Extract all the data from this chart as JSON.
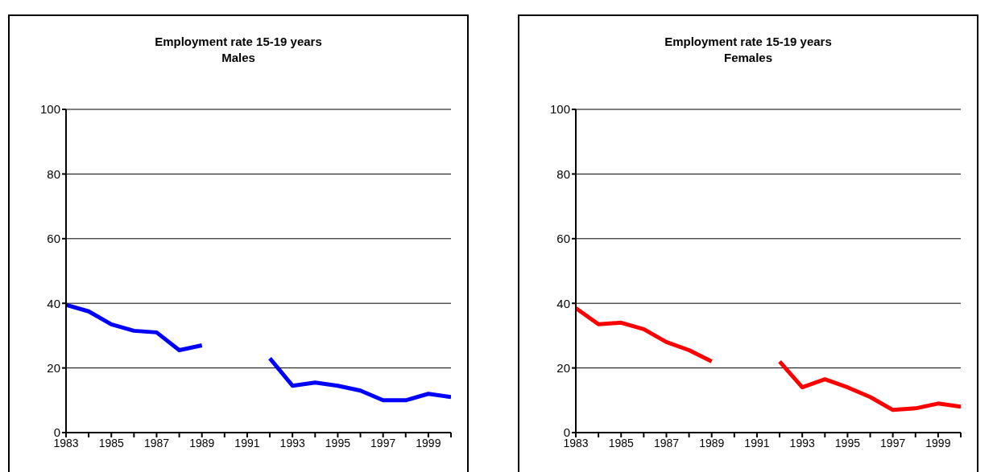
{
  "chart_data": [
    {
      "type": "line",
      "title": "Employment rate 15-19 years",
      "subtitle": "Males",
      "x": [
        1983,
        1984,
        1985,
        1986,
        1987,
        1988,
        1989,
        1990,
        1991,
        1992,
        1993,
        1994,
        1995,
        1996,
        1997,
        1998,
        1999,
        2000
      ],
      "series": [
        {
          "color": "#0000ff",
          "values": [
            39.5,
            37.5,
            33.5,
            31.5,
            31,
            25.5,
            27,
            null,
            null,
            23,
            14.5,
            15.5,
            14.5,
            13,
            10,
            10,
            12,
            11
          ]
        }
      ],
      "xlim": [
        1983,
        2000
      ],
      "xticks": [
        1983,
        {
          "value": 1984,
          "label": null
        },
        1985,
        {
          "value": 1986,
          "label": null
        },
        1987,
        {
          "value": 1988,
          "label": null
        },
        1989,
        {
          "value": 1990,
          "label": null
        },
        1991,
        {
          "value": 1992,
          "label": null
        },
        1993,
        {
          "value": 1994,
          "label": null
        },
        1995,
        {
          "value": 1996,
          "label": null
        },
        1997,
        {
          "value": 1998,
          "label": null
        },
        1999,
        {
          "value": 2000,
          "label": null
        }
      ],
      "ylim": [
        0,
        100
      ],
      "yticks": [
        0,
        20,
        40,
        60,
        80,
        100
      ],
      "grid": "y",
      "legend": false,
      "marker": "none",
      "line_style": "solid"
    },
    {
      "type": "line",
      "title": "Employment rate 15-19 years",
      "subtitle": "Females",
      "x": [
        1983,
        1984,
        1985,
        1986,
        1987,
        1988,
        1989,
        1990,
        1991,
        1992,
        1993,
        1994,
        1995,
        1996,
        1997,
        1998,
        1999,
        2000
      ],
      "series": [
        {
          "color": "#ff0000",
          "values": [
            38.5,
            33.5,
            34,
            32,
            28,
            25.5,
            22,
            null,
            null,
            22,
            14,
            16.5,
            14,
            11,
            7,
            7.5,
            9,
            8
          ]
        }
      ],
      "xlim": [
        1983,
        2000
      ],
      "xticks": [
        1983,
        {
          "value": 1984,
          "label": null
        },
        1985,
        {
          "value": 1986,
          "label": null
        },
        1987,
        {
          "value": 1988,
          "label": null
        },
        1989,
        {
          "value": 1990,
          "label": null
        },
        1991,
        {
          "value": 1992,
          "label": null
        },
        1993,
        {
          "value": 1994,
          "label": null
        },
        1995,
        {
          "value": 1996,
          "label": null
        },
        1997,
        {
          "value": 1998,
          "label": null
        },
        1999,
        {
          "value": 2000,
          "label": null
        }
      ],
      "ylim": [
        0,
        100
      ],
      "yticks": [
        0,
        20,
        40,
        60,
        80,
        100
      ],
      "grid": "y",
      "legend": false,
      "marker": "none",
      "line_style": "solid"
    }
  ]
}
